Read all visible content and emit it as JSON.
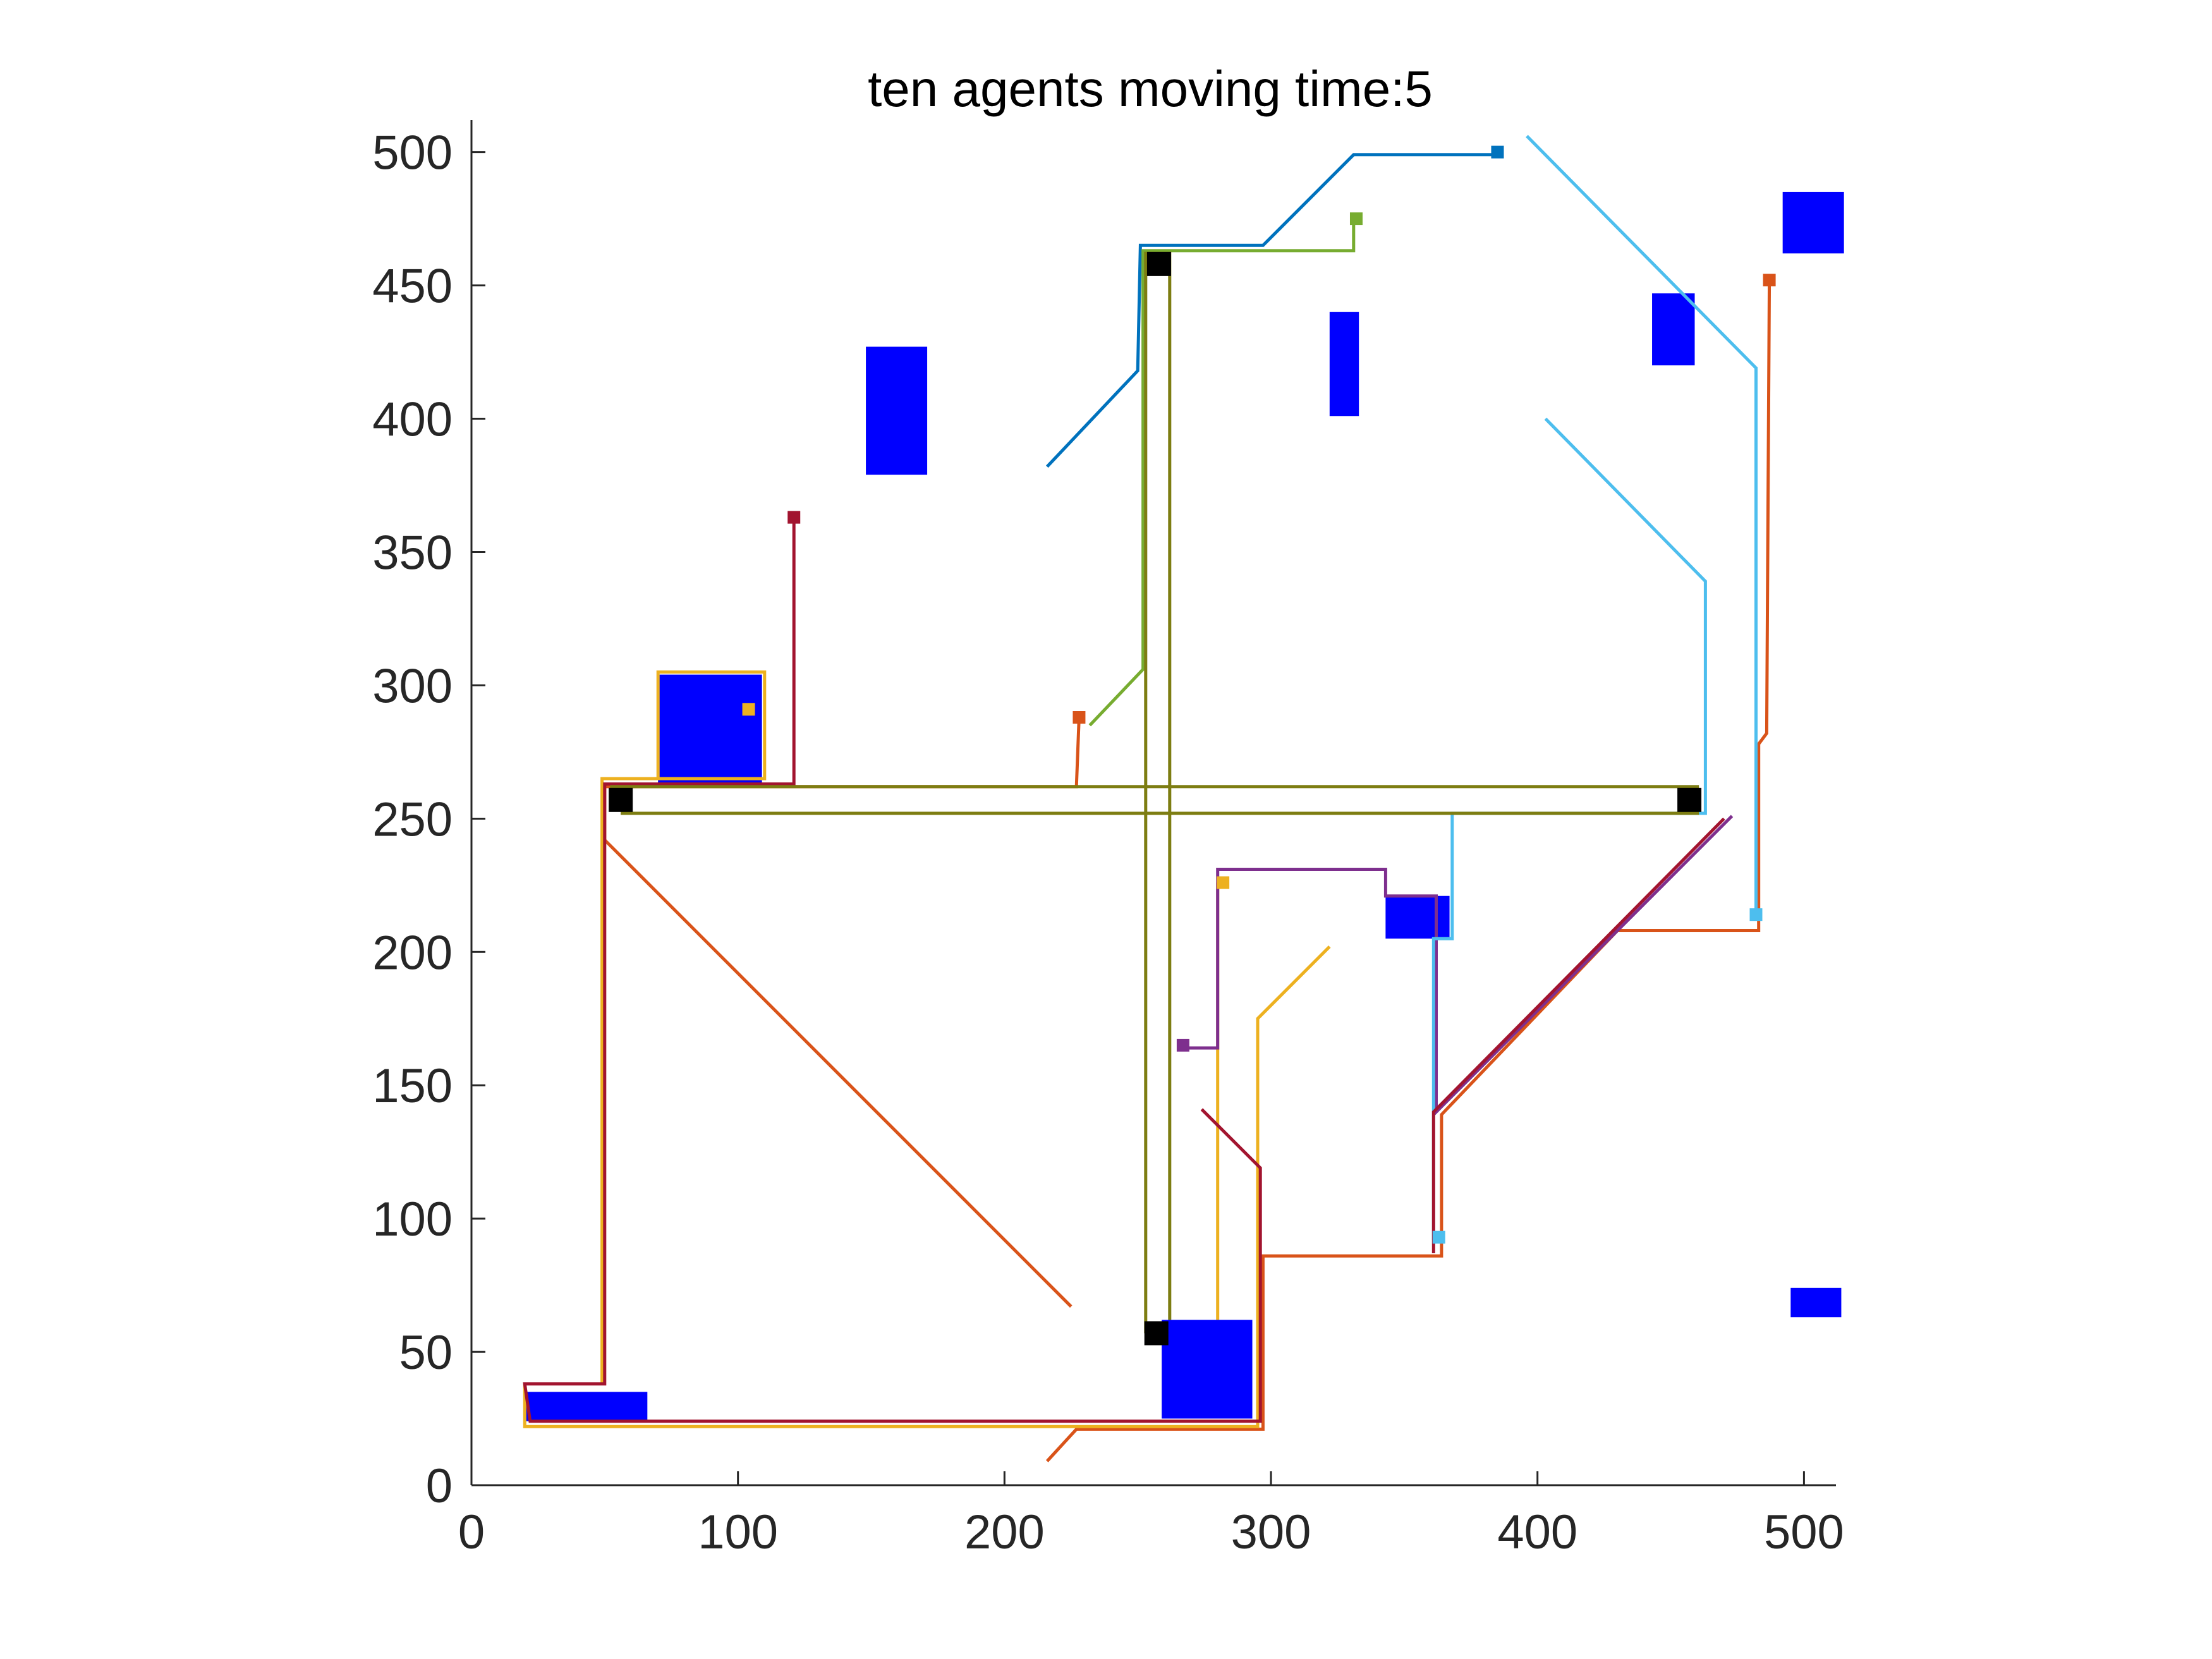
{
  "chart_data": {
    "type": "line",
    "title": "ten agents moving time:5",
    "xlabel": "",
    "ylabel": "",
    "xlim": [
      0,
      512
    ],
    "ylim": [
      0,
      512
    ],
    "xticks": [
      0,
      100,
      200,
      300,
      400,
      500
    ],
    "yticks": [
      0,
      50,
      100,
      150,
      200,
      250,
      300,
      350,
      400,
      450,
      500
    ],
    "grid": false,
    "legend": "none",
    "obstacle_color": "#0000ff",
    "waypoint_color": "#000000",
    "obstacles": [
      {
        "x0": 148,
        "y0": 379,
        "x1": 171,
        "y1": 427
      },
      {
        "x0": 70,
        "y0": 263,
        "x1": 109,
        "y1": 304
      },
      {
        "x0": 322,
        "y0": 401,
        "x1": 333,
        "y1": 440
      },
      {
        "x0": 443,
        "y0": 420,
        "x1": 459,
        "y1": 447
      },
      {
        "x0": 492,
        "y0": 462,
        "x1": 515,
        "y1": 485
      },
      {
        "x0": 343,
        "y0": 205,
        "x1": 367,
        "y1": 221
      },
      {
        "x0": 259,
        "y0": 25,
        "x1": 293,
        "y1": 62
      },
      {
        "x0": 20,
        "y0": 24,
        "x1": 66,
        "y1": 35
      },
      {
        "x0": 495,
        "y0": 63,
        "x1": 514,
        "y1": 74
      }
    ],
    "waypoints": [
      {
        "x": 258,
        "y": 458
      },
      {
        "x": 56,
        "y": 257
      },
      {
        "x": 457,
        "y": 257
      },
      {
        "x": 257,
        "y": 57
      }
    ],
    "series": [
      {
        "color": "#0072bd",
        "path": [
          [
            216,
            382
          ],
          [
            250,
            418
          ],
          [
            251,
            465
          ],
          [
            297,
            465
          ],
          [
            331,
            499
          ],
          [
            384,
            499
          ]
        ],
        "marker": [
          385,
          500
        ]
      },
      {
        "color": "#d95319",
        "path": [
          [
            216,
            9
          ],
          [
            227,
            21
          ],
          [
            297,
            21
          ],
          [
            297,
            86
          ],
          [
            364,
            86
          ],
          [
            364,
            139
          ],
          [
            430,
            208
          ],
          [
            483,
            208
          ],
          [
            483,
            278
          ],
          [
            486,
            282
          ],
          [
            487,
            452
          ]
        ],
        "marker": [
          487,
          452
        ]
      },
      {
        "color": "#d95319",
        "path": [
          [
            225,
            67
          ],
          [
            50,
            242
          ],
          [
            50,
            262
          ],
          [
            227,
            262
          ],
          [
            228,
            288
          ]
        ],
        "marker": [
          228,
          288
        ]
      },
      {
        "color": "#edb120",
        "path": [
          [
            20,
            38
          ],
          [
            20,
            22
          ],
          [
            295,
            22
          ],
          [
            295,
            175
          ],
          [
            322,
            202
          ]
        ],
        "marker": null
      },
      {
        "color": "#edb120",
        "path": [
          [
            280,
            62
          ],
          [
            280,
            226
          ]
        ],
        "marker": [
          282,
          226
        ]
      },
      {
        "color": "#edb120",
        "path": [
          [
            49,
            38
          ],
          [
            49,
            265
          ],
          [
            110,
            265
          ],
          [
            110,
            305
          ],
          [
            70,
            305
          ],
          [
            70,
            265
          ]
        ],
        "marker": [
          104,
          291
        ]
      },
      {
        "color": "#7e2f8e",
        "path": [
          [
            265,
            164
          ],
          [
            280,
            164
          ],
          [
            280,
            231
          ],
          [
            343,
            231
          ],
          [
            343,
            221
          ],
          [
            362,
            221
          ],
          [
            362,
            140
          ],
          [
            473,
            251
          ]
        ],
        "marker": [
          267,
          165
        ]
      },
      {
        "color": "#77ac30",
        "path": [
          [
            232,
            285
          ],
          [
            252,
            306
          ],
          [
            252,
            463
          ],
          [
            331,
            463
          ],
          [
            331,
            475
          ]
        ],
        "marker": [
          332,
          475
        ]
      },
      {
        "color": "#4dbeee",
        "path": [
          [
            403,
            400
          ],
          [
            463,
            339
          ],
          [
            463,
            252
          ],
          [
            368,
            252
          ],
          [
            368,
            205
          ],
          [
            361,
            205
          ],
          [
            361,
            92
          ]
        ],
        "marker": [
          363,
          93
        ]
      },
      {
        "color": "#4dbeee",
        "path": [
          [
            396,
            506
          ],
          [
            482,
            419
          ],
          [
            482,
            213
          ]
        ],
        "marker": [
          482,
          214
        ]
      },
      {
        "color": "#a2142f",
        "path": [
          [
            274,
            141
          ],
          [
            296,
            119
          ],
          [
            296,
            24
          ],
          [
            22,
            24
          ],
          [
            20,
            38
          ],
          [
            50,
            38
          ],
          [
            50,
            263
          ],
          [
            121,
            263
          ],
          [
            121,
            362
          ]
        ],
        "marker": [
          121,
          363
        ]
      },
      {
        "color": "#a2142f",
        "path": [
          [
            361,
            87
          ],
          [
            361,
            140
          ],
          [
            470,
            250
          ]
        ],
        "marker": null
      },
      {
        "color": "#7d7d12",
        "path": [
          [
            253,
            57
          ],
          [
            253,
            462
          ],
          [
            262,
            462
          ],
          [
            262,
            62
          ]
        ],
        "marker": null
      },
      {
        "color": "#7d7d12",
        "path": [
          [
            56,
            252
          ],
          [
            460,
            252
          ],
          [
            460,
            262
          ],
          [
            52,
            262
          ]
        ],
        "marker": null
      }
    ]
  }
}
